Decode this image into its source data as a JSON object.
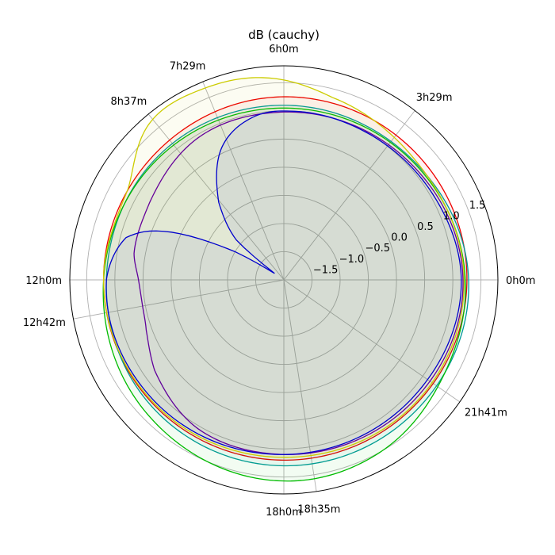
{
  "chart_data": {
    "type": "line",
    "subtype": "polar",
    "title": "dB (cauchy)",
    "r_range": [
      -2.0,
      1.8
    ],
    "r_ticks": [
      -1.5,
      -1.0,
      -0.5,
      0.0,
      0.5,
      1.0,
      1.5
    ],
    "r_tick_labels": [
      "−1.5",
      "−1.0",
      "−0.5",
      "0.0",
      "0.5",
      "1.0",
      "1.5"
    ],
    "theta_ticks_deg": [
      0,
      52.25,
      90,
      112.25,
      129.25,
      180,
      190.5,
      270,
      278.75,
      325.25
    ],
    "theta_tick_labels": [
      "0h0m",
      "3h29m",
      "6h0m",
      "7h29m",
      "8h37m",
      "12h0m",
      "12h42m",
      "18h0m",
      "18h35m",
      "21h41m"
    ],
    "grid": true,
    "legend": "none",
    "series": [
      {
        "color": "#ee0000",
        "fill": true,
        "points": [
          [
            0,
            1.25
          ],
          [
            45,
            1.25
          ],
          [
            90,
            1.25
          ],
          [
            135,
            1.2
          ],
          [
            180,
            1.2
          ],
          [
            225,
            1.2
          ],
          [
            270,
            1.2
          ],
          [
            315,
            1.22
          ]
        ]
      },
      {
        "color": "#009999",
        "fill": true,
        "points": [
          [
            0,
            1.28
          ],
          [
            45,
            1.12
          ],
          [
            90,
            1.1
          ],
          [
            135,
            1.13
          ],
          [
            180,
            1.15
          ],
          [
            225,
            1.25
          ],
          [
            270,
            1.3
          ],
          [
            315,
            1.3
          ]
        ]
      },
      {
        "color": "#00bb00",
        "fill": true,
        "points": [
          [
            0,
            1.22
          ],
          [
            45,
            1.1
          ],
          [
            90,
            1.05
          ],
          [
            135,
            1.1
          ],
          [
            180,
            1.2
          ],
          [
            225,
            1.4
          ],
          [
            270,
            1.57
          ],
          [
            300,
            1.5
          ],
          [
            330,
            1.3
          ]
        ]
      },
      {
        "color": "#cccc00",
        "fill": true,
        "points": [
          [
            0,
            1.2
          ],
          [
            40,
            1.15
          ],
          [
            75,
            1.35
          ],
          [
            95,
            1.6
          ],
          [
            112,
            1.68
          ],
          [
            130,
            1.67
          ],
          [
            150,
            1.2
          ],
          [
            180,
            1.2
          ],
          [
            220,
            1.18
          ],
          [
            270,
            1.15
          ],
          [
            320,
            1.2
          ]
        ]
      },
      {
        "color": "#660099",
        "fill": false,
        "points": [
          [
            0,
            1.18
          ],
          [
            45,
            1.05
          ],
          [
            90,
            0.98
          ],
          [
            120,
            0.95
          ],
          [
            150,
            0.75
          ],
          [
            170,
            0.7
          ],
          [
            180,
            0.58
          ],
          [
            190,
            0.55
          ],
          [
            200,
            0.6
          ],
          [
            215,
            0.8
          ],
          [
            240,
            1.05
          ],
          [
            270,
            1.1
          ],
          [
            320,
            1.15
          ]
        ]
      },
      {
        "color": "#0000cc",
        "fill": true,
        "points": [
          [
            0,
            1.15
          ],
          [
            30,
            1.05
          ],
          [
            60,
            1.0
          ],
          [
            85,
            1.0
          ],
          [
            100,
            0.95
          ],
          [
            115,
            0.6
          ],
          [
            130,
            -0.2
          ],
          [
            140,
            -0.9
          ],
          [
            145,
            -1.8
          ],
          [
            150,
            -1.0
          ],
          [
            158,
            0.3
          ],
          [
            165,
            0.9
          ],
          [
            180,
            1.15
          ],
          [
            220,
            1.15
          ],
          [
            270,
            1.1
          ],
          [
            320,
            1.1
          ]
        ]
      }
    ]
  }
}
